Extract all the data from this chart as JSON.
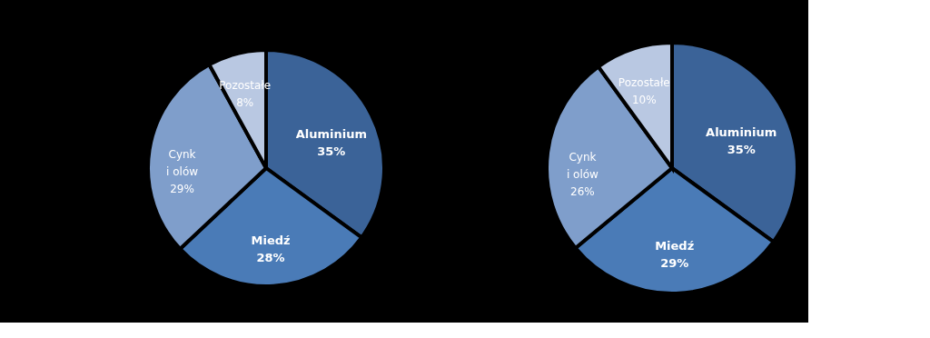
{
  "chart_data": [
    {
      "type": "pie",
      "categories": [
        "Aluminium",
        "Miedź",
        "Cynk\ni olów",
        "Pozostałe"
      ],
      "values": [
        35,
        28,
        29,
        8
      ],
      "value_labels": [
        "35%",
        "28%",
        "29%",
        "8%"
      ],
      "colors": [
        "#3b6398",
        "#4a7bb7",
        "#7f9ecb",
        "#b9c8e2"
      ]
    },
    {
      "type": "pie",
      "categories": [
        "Aluminium",
        "Miedź",
        "Cynk\ni olów",
        "Pozostałe"
      ],
      "values": [
        35,
        29,
        26,
        10
      ],
      "value_labels": [
        "35%",
        "29%",
        "26%",
        "10%"
      ],
      "colors": [
        "#3b6398",
        "#4a7bb7",
        "#7f9ecb",
        "#b9c8e2"
      ]
    }
  ]
}
